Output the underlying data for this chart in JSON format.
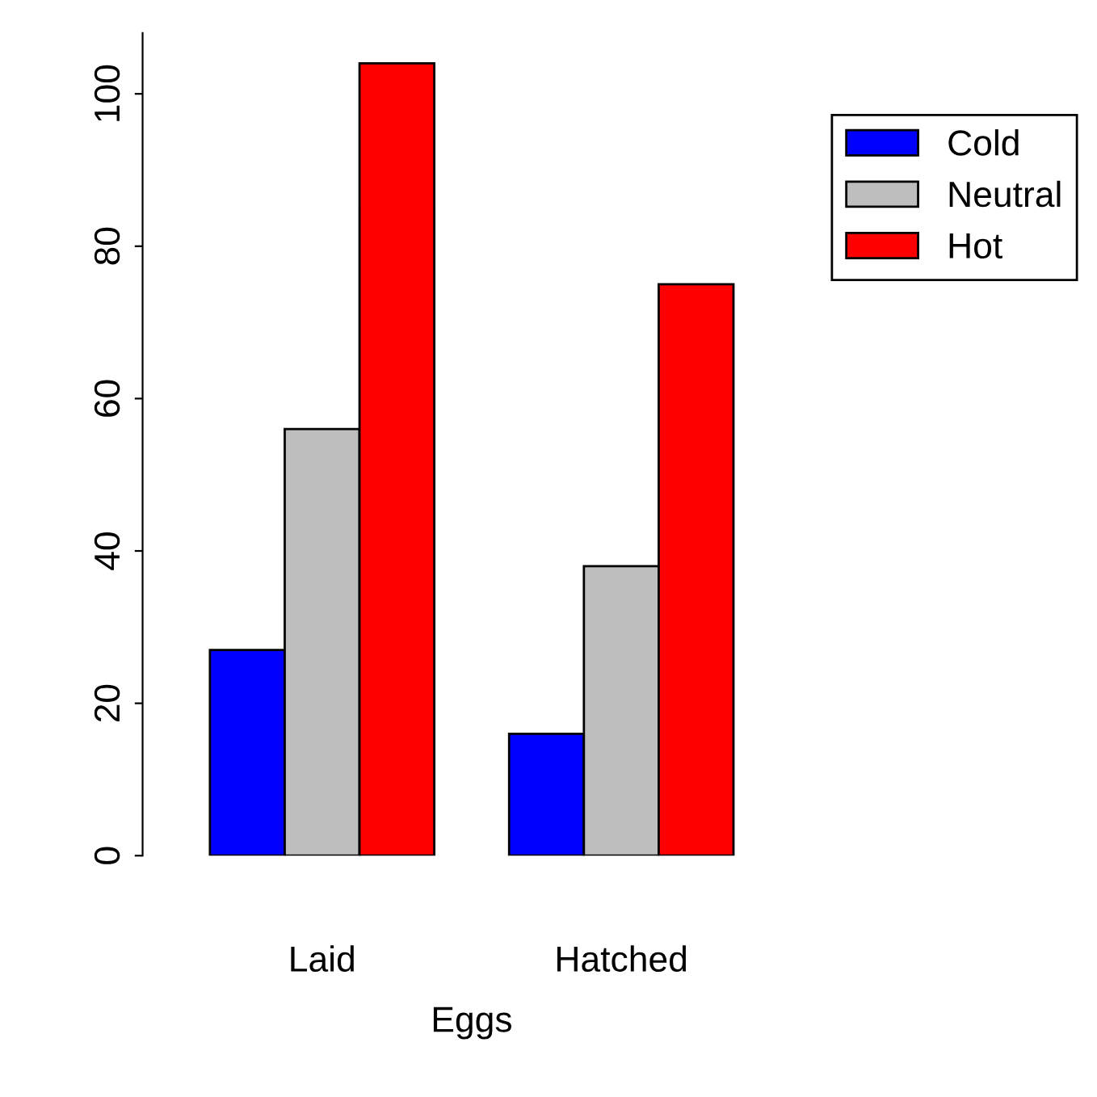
{
  "chart_data": {
    "type": "bar",
    "xlabel": "Eggs",
    "categories": [
      "Laid",
      "Hatched"
    ],
    "series": [
      {
        "name": "Cold",
        "color": "#0000ff",
        "values": [
          27,
          16
        ]
      },
      {
        "name": "Neutral",
        "color": "#bebebe",
        "values": [
          56,
          38
        ]
      },
      {
        "name": "Hot",
        "color": "#ff0000",
        "values": [
          104,
          75
        ]
      }
    ],
    "ylim": [
      0,
      108
    ],
    "yticks": [
      0,
      20,
      40,
      60,
      80,
      100
    ],
    "grid": false,
    "legend": "right"
  }
}
